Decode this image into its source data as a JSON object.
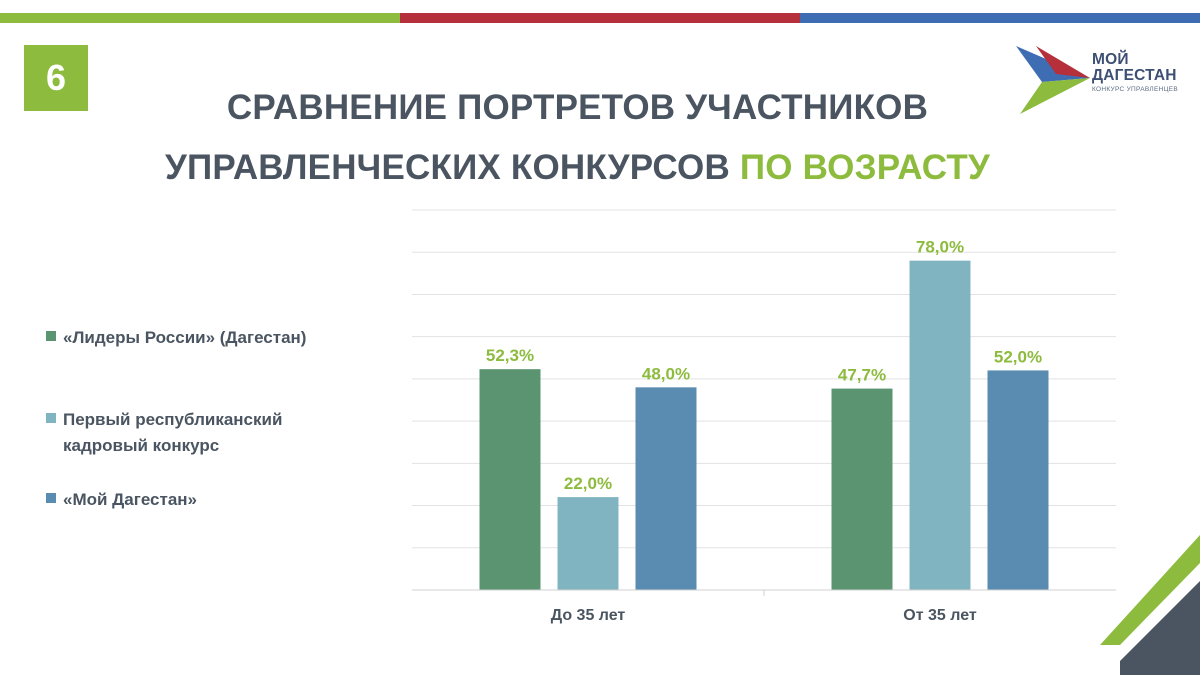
{
  "slide": {
    "number": "6"
  },
  "title": {
    "line1": "СРАВНЕНИЕ ПОРТРЕТОВ УЧАСТНИКОВ",
    "line2_main": "УПРАВЛЕНЧЕСКИХ КОНКУРСОВ",
    "line2_accent": "ПО ВОЗРАСТУ"
  },
  "logo": {
    "line1": "МОЙ",
    "line2": "ДАГЕСТАН",
    "subtitle": "КОНКУРС УПРАВЛЕНЦЕВ"
  },
  "colors": {
    "bar_top_green": "#8dbb3e",
    "bar_top_red": "#b5303a",
    "bar_top_blue": "#3f6db3",
    "title": "#4a5561",
    "accent": "#8dbb3e",
    "data_label": "#8dbb3e",
    "series1": "#5a9470",
    "series2": "#7fb4c0",
    "series3": "#5a8bb0"
  },
  "chart_data": {
    "type": "bar",
    "categories": [
      "До 35 лет",
      "От 35 лет"
    ],
    "series": [
      {
        "name": "«Лидеры России» (Дагестан)",
        "values": [
          52.3,
          47.7
        ],
        "labels": [
          "52,3%",
          "47,7%"
        ]
      },
      {
        "name": "Первый республиканский кадровый конкурс",
        "values": [
          22.0,
          78.0
        ],
        "labels": [
          "22,0%",
          "78,0%"
        ]
      },
      {
        "name": "«Мой Дагестан»",
        "values": [
          48.0,
          52.0
        ],
        "labels": [
          "48,0%",
          "52,0%"
        ]
      }
    ],
    "ylim": [
      0,
      90
    ],
    "grid": true,
    "legend_position": "left",
    "y_axis_labels_shown": false
  }
}
